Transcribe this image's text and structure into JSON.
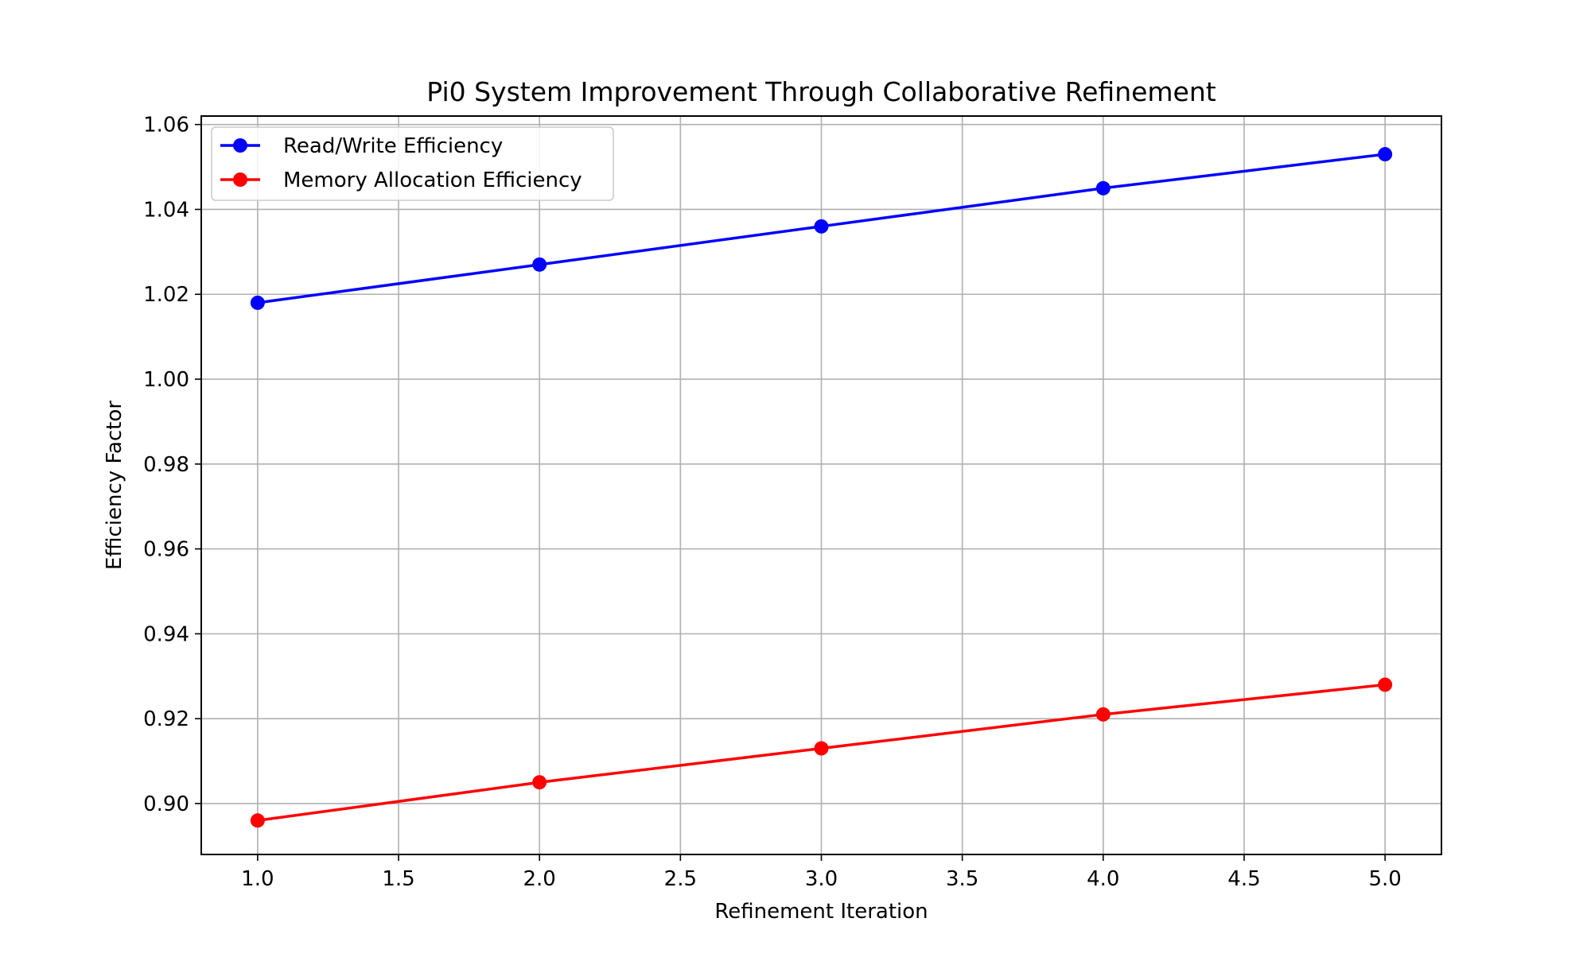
{
  "chart_data": {
    "type": "line",
    "title": "Pi0 System Improvement Through Collaborative Refinement",
    "xlabel": "Refinement Iteration",
    "ylabel": "Efficiency Factor",
    "x": [
      1,
      2,
      3,
      4,
      5
    ],
    "xlim": [
      0.8,
      5.2
    ],
    "ylim": [
      0.888,
      1.062
    ],
    "xticks": [
      1.0,
      1.5,
      2.0,
      2.5,
      3.0,
      3.5,
      4.0,
      4.5,
      5.0
    ],
    "xtick_labels": [
      "1.0",
      "1.5",
      "2.0",
      "2.5",
      "3.0",
      "3.5",
      "4.0",
      "4.5",
      "5.0"
    ],
    "yticks": [
      0.9,
      0.92,
      0.94,
      0.96,
      0.98,
      1.0,
      1.02,
      1.04,
      1.06
    ],
    "ytick_labels": [
      "0.90",
      "0.92",
      "0.94",
      "0.96",
      "0.98",
      "1.00",
      "1.02",
      "1.04",
      "1.06"
    ],
    "grid": true,
    "legend_position": "top-left",
    "series": [
      {
        "name": "Read/Write Efficiency",
        "color": "#0000ff",
        "values": [
          1.018,
          1.027,
          1.036,
          1.045,
          1.053
        ]
      },
      {
        "name": "Memory Allocation Efficiency",
        "color": "#ff0000",
        "values": [
          0.896,
          0.905,
          0.913,
          0.921,
          0.928
        ]
      }
    ]
  }
}
